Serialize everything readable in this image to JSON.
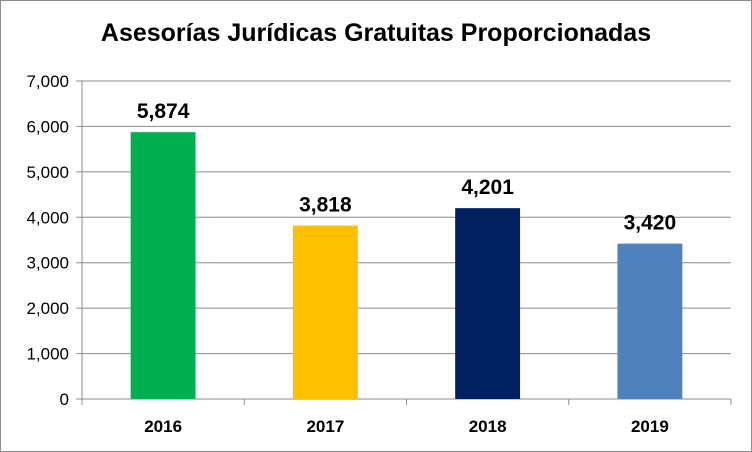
{
  "chart_data": {
    "type": "bar",
    "title": "Asesorías Jurídicas Gratuitas Proporcionadas",
    "xlabel": "",
    "ylabel": "",
    "categories": [
      "2016",
      "2017",
      "2018",
      "2019"
    ],
    "values": [
      5874,
      3818,
      4201,
      3420
    ],
    "data_labels": [
      "5,874",
      "3,818",
      "4,201",
      "3,420"
    ],
    "bar_colors": [
      "#00b050",
      "#ffc000",
      "#002060",
      "#4f81bd"
    ],
    "ylim": [
      0,
      7000
    ],
    "yticks": [
      0,
      1000,
      2000,
      3000,
      4000,
      5000,
      6000,
      7000
    ],
    "ytick_labels": [
      "0",
      "1,000",
      "2,000",
      "3,000",
      "4,000",
      "5,000",
      "6,000",
      "7,000"
    ],
    "grid": true,
    "legend": "none"
  }
}
